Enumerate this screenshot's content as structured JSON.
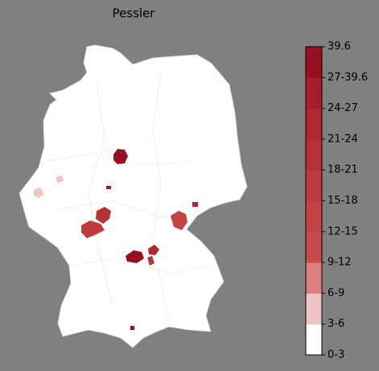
{
  "title": "Pessler",
  "legend": {
    "labels": [
      "0-3",
      "3-6",
      "6-9",
      "9-12",
      "12-15",
      "15-18",
      "18-21",
      "21-24",
      "24-27",
      "27-39.6",
      "39.6"
    ],
    "colors": [
      "#ffffff",
      "#f0c4c4",
      "#dd8080",
      "#c94a4a",
      "#c44242",
      "#bf3a3a",
      "#b83235",
      "#b0282f",
      "#a61e2a",
      "#990f22"
    ]
  }
}
